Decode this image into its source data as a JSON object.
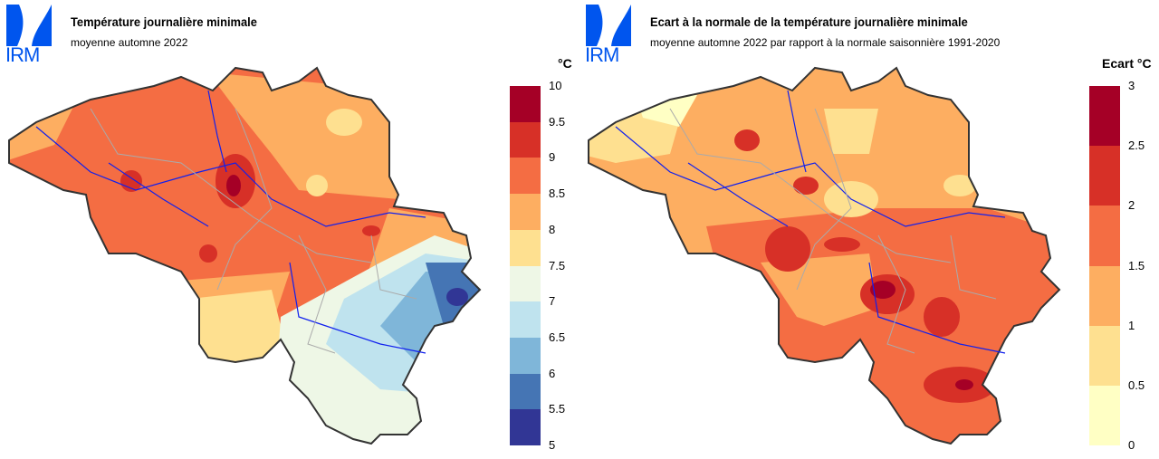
{
  "left": {
    "logo": "IRM",
    "title": "Température journalière minimale",
    "subtitle": "moyenne automne 2022",
    "unit": "°C",
    "legend": {
      "ticks": [
        "10",
        "9.5",
        "9",
        "8.5",
        "8",
        "7.5",
        "7",
        "6.5",
        "6",
        "5.5",
        "5"
      ],
      "colors": [
        "#a50026",
        "#d73027",
        "#f46d43",
        "#fdae61",
        "#fee090",
        "#eef7e6",
        "#bfe3ee",
        "#7fb6d9",
        "#4575b4",
        "#313695"
      ]
    }
  },
  "right": {
    "logo": "IRM",
    "title": "Ecart à la normale de la température journalière minimale",
    "subtitle": "moyenne automne 2022 par rapport à la normale saisonnière 1991-2020",
    "unit": "Ecart °C",
    "legend": {
      "ticks": [
        "3",
        "2.5",
        "2",
        "1.5",
        "1",
        "0.5",
        "0"
      ],
      "colors": [
        "#a50026",
        "#d73027",
        "#f46d43",
        "#fdae61",
        "#fee090",
        "#ffffc4"
      ]
    }
  }
}
